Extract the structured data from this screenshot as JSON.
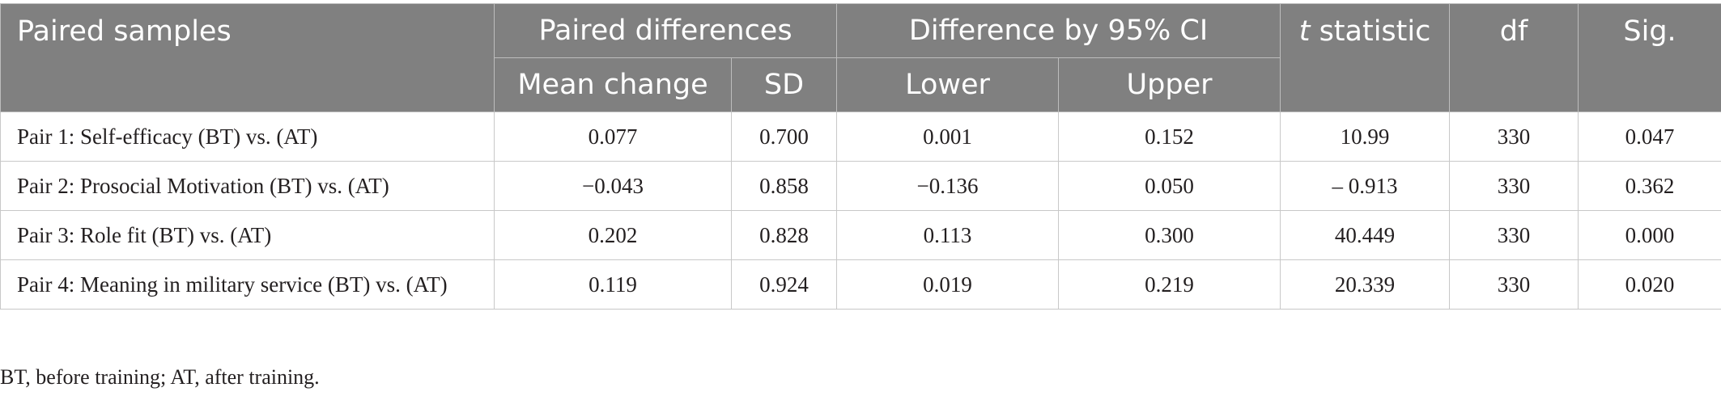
{
  "table": {
    "headers": {
      "paired_samples": "Paired samples",
      "paired_differences": "Paired differences",
      "difference_ci": "Difference by 95% CI",
      "t_statistic_italic": "t",
      "t_statistic_rest": " statistic",
      "df": "df",
      "sig": "Sig.",
      "mean_change": "Mean change",
      "sd": "SD",
      "lower": "Lower",
      "upper": "Upper"
    },
    "rows": [
      {
        "label": "Pair 1: Self-efficacy (BT) vs. (AT)",
        "mean_change": "0.077",
        "sd": "0.700",
        "lower": "0.001",
        "upper": "0.152",
        "t": "10.99",
        "df": "330",
        "sig": "0.047"
      },
      {
        "label": "Pair 2: Prosocial Motivation (BT) vs. (AT)",
        "mean_change": "−0.043",
        "sd": "0.858",
        "lower": "−0.136",
        "upper": "0.050",
        "t": "– 0.913",
        "df": "330",
        "sig": "0.362"
      },
      {
        "label": "Pair 3: Role fit (BT) vs. (AT)",
        "mean_change": "0.202",
        "sd": "0.828",
        "lower": "0.113",
        "upper": "0.300",
        "t": "40.449",
        "df": "330",
        "sig": "0.000"
      },
      {
        "label": "Pair 4: Meaning in military service (BT) vs. (AT)",
        "mean_change": "0.119",
        "sd": "0.924",
        "lower": "0.019",
        "upper": "0.219",
        "t": "20.339",
        "df": "330",
        "sig": "0.020"
      }
    ]
  },
  "footnote": "BT, before training; AT, after training.",
  "colors": {
    "header_bg": "#808080",
    "header_text": "#ffffff",
    "body_text": "#231f20",
    "grid": "#c8c8c8"
  }
}
